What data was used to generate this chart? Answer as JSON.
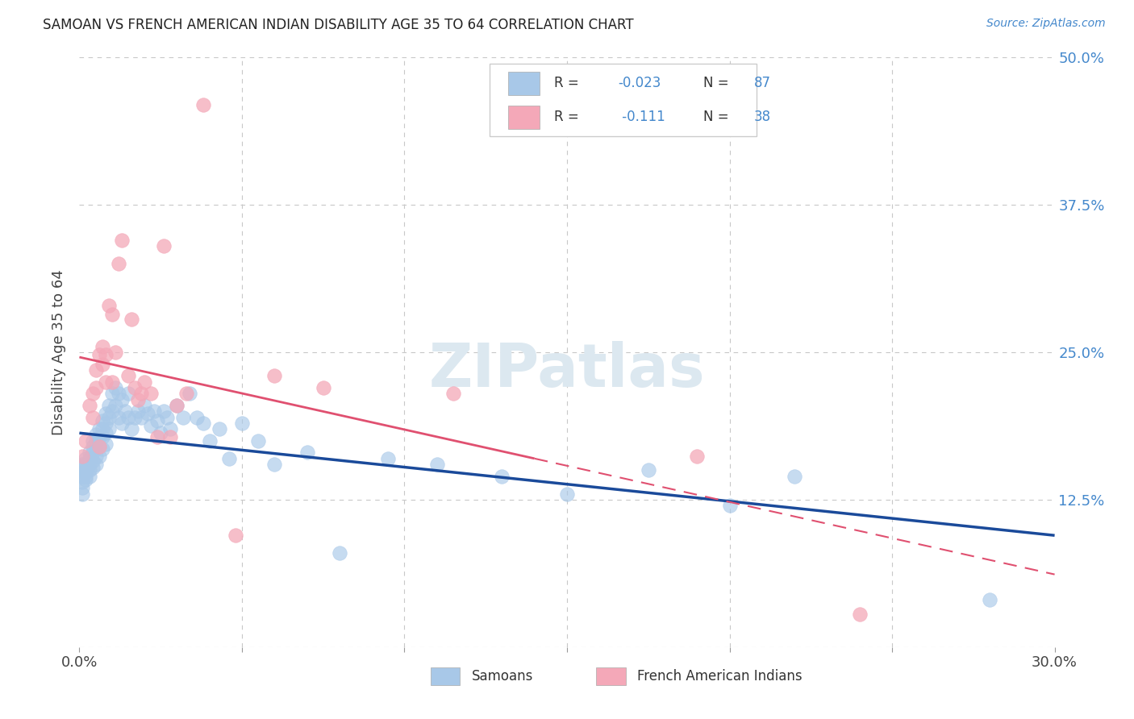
{
  "title": "SAMOAN VS FRENCH AMERICAN INDIAN DISABILITY AGE 35 TO 64 CORRELATION CHART",
  "source": "Source: ZipAtlas.com",
  "ylabel": "Disability Age 35 to 64",
  "xlim": [
    0.0,
    0.3
  ],
  "ylim": [
    0.0,
    0.5
  ],
  "blue_color": "#a8c8e8",
  "pink_color": "#f4a8b8",
  "blue_line_color": "#1a4a9a",
  "pink_line_color": "#e05070",
  "right_tick_color": "#4488cc",
  "grid_color": "#c8c8c8",
  "title_color": "#222222",
  "background_color": "#ffffff",
  "legend_R1": "-0.023",
  "legend_N1": "87",
  "legend_R2": "-0.111",
  "legend_N2": "38",
  "yticks_right": [
    0.0,
    0.125,
    0.25,
    0.375,
    0.5
  ],
  "ytick_right_labels": [
    "",
    "12.5%",
    "25.0%",
    "37.5%",
    "50.0%"
  ],
  "samoan_x": [
    0.001,
    0.001,
    0.001,
    0.001,
    0.001,
    0.001,
    0.002,
    0.002,
    0.002,
    0.002,
    0.002,
    0.002,
    0.003,
    0.003,
    0.003,
    0.003,
    0.003,
    0.004,
    0.004,
    0.004,
    0.004,
    0.004,
    0.005,
    0.005,
    0.005,
    0.005,
    0.005,
    0.006,
    0.006,
    0.006,
    0.006,
    0.007,
    0.007,
    0.007,
    0.007,
    0.008,
    0.008,
    0.008,
    0.008,
    0.009,
    0.009,
    0.009,
    0.01,
    0.01,
    0.011,
    0.011,
    0.012,
    0.012,
    0.013,
    0.013,
    0.014,
    0.015,
    0.015,
    0.016,
    0.017,
    0.018,
    0.019,
    0.02,
    0.021,
    0.022,
    0.023,
    0.024,
    0.025,
    0.026,
    0.027,
    0.028,
    0.03,
    0.032,
    0.034,
    0.036,
    0.038,
    0.04,
    0.043,
    0.046,
    0.05,
    0.055,
    0.06,
    0.07,
    0.08,
    0.095,
    0.11,
    0.13,
    0.15,
    0.175,
    0.2,
    0.22,
    0.28
  ],
  "samoan_y": [
    0.155,
    0.15,
    0.145,
    0.14,
    0.135,
    0.13,
    0.16,
    0.155,
    0.15,
    0.148,
    0.145,
    0.142,
    0.165,
    0.16,
    0.155,
    0.15,
    0.145,
    0.175,
    0.17,
    0.165,
    0.158,
    0.152,
    0.18,
    0.175,
    0.17,
    0.162,
    0.155,
    0.185,
    0.178,
    0.17,
    0.162,
    0.192,
    0.185,
    0.178,
    0.168,
    0.198,
    0.19,
    0.182,
    0.172,
    0.205,
    0.195,
    0.185,
    0.215,
    0.2,
    0.22,
    0.205,
    0.215,
    0.195,
    0.21,
    0.19,
    0.2,
    0.215,
    0.195,
    0.185,
    0.195,
    0.2,
    0.195,
    0.205,
    0.198,
    0.188,
    0.2,
    0.192,
    0.182,
    0.2,
    0.195,
    0.185,
    0.205,
    0.195,
    0.215,
    0.195,
    0.19,
    0.175,
    0.185,
    0.16,
    0.19,
    0.175,
    0.155,
    0.165,
    0.08,
    0.16,
    0.155,
    0.145,
    0.13,
    0.15,
    0.12,
    0.145,
    0.04
  ],
  "french_x": [
    0.001,
    0.002,
    0.003,
    0.004,
    0.004,
    0.005,
    0.005,
    0.006,
    0.006,
    0.007,
    0.007,
    0.008,
    0.008,
    0.009,
    0.01,
    0.01,
    0.011,
    0.012,
    0.013,
    0.015,
    0.016,
    0.017,
    0.018,
    0.019,
    0.02,
    0.022,
    0.024,
    0.026,
    0.028,
    0.03,
    0.033,
    0.038,
    0.048,
    0.06,
    0.075,
    0.115,
    0.19,
    0.24
  ],
  "french_y": [
    0.162,
    0.175,
    0.205,
    0.215,
    0.195,
    0.235,
    0.22,
    0.248,
    0.17,
    0.255,
    0.24,
    0.248,
    0.225,
    0.29,
    0.282,
    0.225,
    0.25,
    0.325,
    0.345,
    0.23,
    0.278,
    0.22,
    0.21,
    0.215,
    0.225,
    0.215,
    0.178,
    0.34,
    0.178,
    0.205,
    0.215,
    0.46,
    0.095,
    0.23,
    0.22,
    0.215,
    0.162,
    0.028
  ]
}
